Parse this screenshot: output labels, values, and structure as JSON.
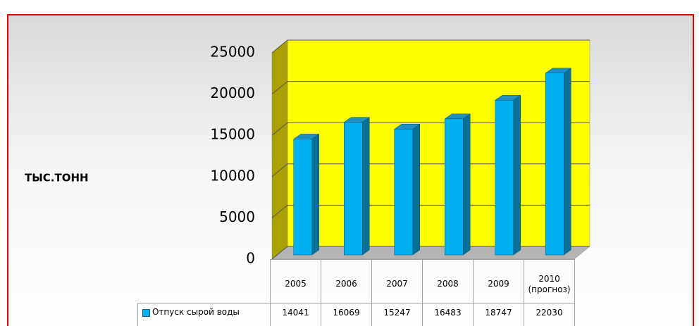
{
  "chart_data": {
    "type": "bar3d",
    "y_label": "ТЫС.ТОНН",
    "categories": [
      "2005",
      "2006",
      "2007",
      "2008",
      "2009",
      "2010 (прогноз)"
    ],
    "series": [
      {
        "name": "Отпуск сырой воды",
        "color": "#00b0f0",
        "values": [
          14041,
          16069,
          15247,
          16483,
          18747,
          22030
        ]
      }
    ],
    "ylim": [
      0,
      25000
    ],
    "yticks": [
      0,
      5000,
      10000,
      15000,
      20000,
      25000
    ],
    "grid": true,
    "data_table": true
  }
}
